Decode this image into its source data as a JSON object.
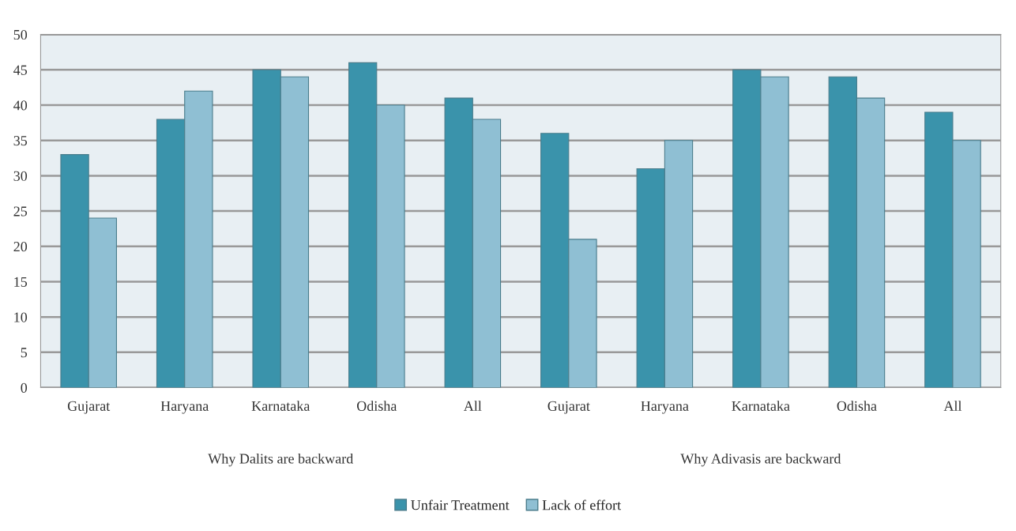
{
  "chart_data": {
    "type": "bar",
    "categories": [
      "Gujarat",
      "Haryana",
      "Karnataka",
      "Odisha",
      "All",
      "Gujarat",
      "Haryana",
      "Karnataka",
      "Odisha",
      "All"
    ],
    "series": [
      {
        "name": "Unfair Treatment",
        "color": "#3a93ab",
        "values": [
          33,
          38,
          45,
          46,
          41,
          36,
          31,
          45,
          44,
          39
        ]
      },
      {
        "name": "Lack of effort",
        "color": "#8fbfd3",
        "values": [
          24,
          42,
          44,
          40,
          38,
          21,
          35,
          44,
          41,
          35
        ]
      }
    ],
    "annotations": [
      "Why Dalits are backward",
      "Why Adivasis are backward"
    ],
    "ylim": [
      0,
      50
    ],
    "yticks": [
      0,
      5,
      10,
      15,
      20,
      25,
      30,
      35,
      40,
      45,
      50
    ],
    "grid": "y",
    "legend": "bottom"
  }
}
